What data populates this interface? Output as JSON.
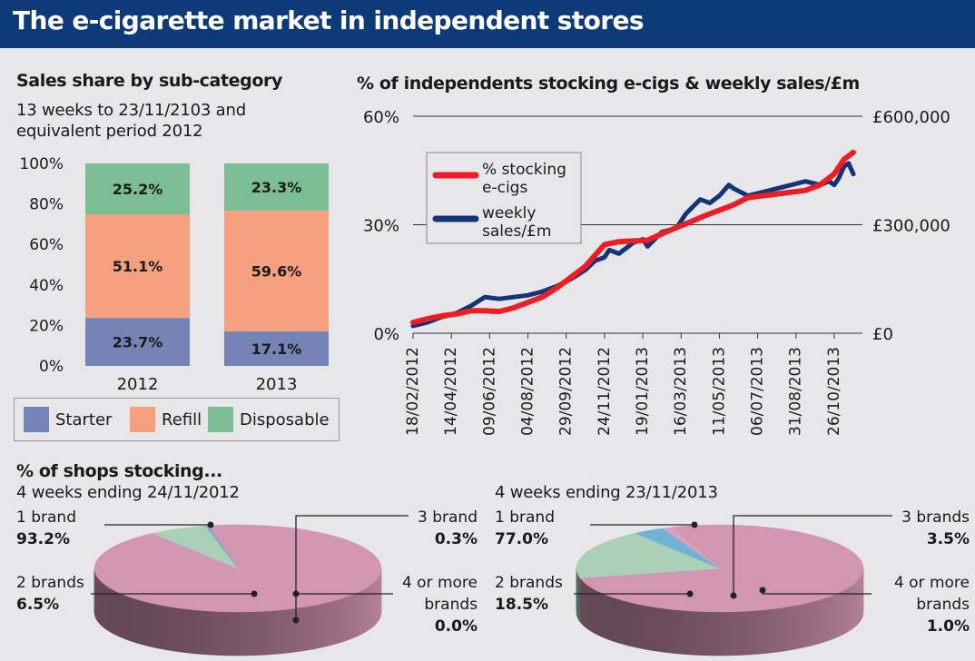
{
  "title": "The e-cigarette market in independent stores",
  "bar_section": {
    "heading": "Sales share by sub-category",
    "subtitle_1": "13 weeks to 23/11/2103 and",
    "subtitle_2": "equivalent period 2012",
    "legend": [
      "Starter",
      "Refill",
      "Disposable"
    ]
  },
  "line_section": {
    "heading": "% of independents stocking e-cigs & weekly sales/£m",
    "legend_1a": "% stocking",
    "legend_1b": "e-cigs",
    "legend_2a": "weekly",
    "legend_2b": "sales/£m"
  },
  "pie_section": {
    "heading": "% of shops stocking...",
    "left_period": "4 weeks ending 24/11/2012",
    "right_period": "4 weeks ending 23/11/2013",
    "labels": {
      "one": "1 brand",
      "two": "2 brands",
      "three_left": "3 brand",
      "three_right": "3 brands",
      "four_a": "4 or more",
      "four_b": "brands"
    }
  },
  "colors": {
    "banner": "#0f3a7a",
    "starter": "#7484b5",
    "refill": "#f5a07e",
    "disposable": "#7dbd95",
    "stocking_line": "#ee1c25",
    "sales_line": "#12357a",
    "pie_1": "#d296b2",
    "pie_2": "#aad0b8",
    "pie_3": "#6fb2d6",
    "pie_4": "#d5a3c0"
  },
  "chart_data": [
    {
      "type": "bar",
      "stacked": true,
      "categories": [
        "2012",
        "2013"
      ],
      "series": [
        {
          "name": "Starter",
          "values": [
            23.7,
            17.1
          ]
        },
        {
          "name": "Refill",
          "values": [
            51.1,
            59.6
          ]
        },
        {
          "name": "Disposable",
          "values": [
            25.2,
            23.3
          ]
        }
      ],
      "data_labels": [
        [
          "23.7%",
          "51.1%",
          "25.2%"
        ],
        [
          "17.1%",
          "59.6%",
          "23.3%"
        ]
      ],
      "ylim": [
        0,
        100
      ],
      "y_ticks": [
        "0%",
        "20%",
        "40%",
        "60%",
        "80%",
        "100%"
      ],
      "legend": "bottom"
    },
    {
      "type": "line",
      "x_ticks": [
        "18/02/2012",
        "14/04/2012",
        "09/06/2012",
        "04/08/2012",
        "29/09/2012",
        "24/11/2012",
        "19/01/2013",
        "16/03/2013",
        "11/05/2013",
        "06/07/2013",
        "31/08/2013",
        "26/10/2013"
      ],
      "x_start": "18/02/2012",
      "x_end": "23/11/2013",
      "y_left_ticks": [
        "0%",
        "30%",
        "60%"
      ],
      "y_left_range": [
        0,
        60
      ],
      "y_right_ticks": [
        "£0",
        "£300,000",
        "£600,000"
      ],
      "y_right_range": [
        0,
        600000
      ],
      "series": [
        {
          "name": "% stocking e-cigs",
          "axis": "left",
          "dates": [
            "18/02/2012",
            "10/03/2012",
            "31/03/2012",
            "21/04/2012",
            "12/05/2012",
            "02/06/2012",
            "23/06/2012",
            "14/07/2012",
            "04/08/2012",
            "25/08/2012",
            "15/09/2012",
            "06/10/2012",
            "27/10/2012",
            "10/11/2012",
            "24/11/2012",
            "15/12/2012",
            "05/01/2013",
            "26/01/2013",
            "16/02/2013",
            "09/03/2013",
            "30/03/2013",
            "20/04/2013",
            "11/05/2013",
            "01/06/2013",
            "22/06/2013",
            "13/07/2013",
            "03/08/2013",
            "24/08/2013",
            "14/09/2013",
            "05/10/2013",
            "26/10/2013",
            "09/11/2013",
            "23/11/2013"
          ],
          "values": [
            3.0,
            4.0,
            4.8,
            5.3,
            6.2,
            6.2,
            6.0,
            7.0,
            8.5,
            10.0,
            12.5,
            15.5,
            18.5,
            21.5,
            24.5,
            25.3,
            25.5,
            25.7,
            27.5,
            29.2,
            30.8,
            32.5,
            34.0,
            35.5,
            37.5,
            38.0,
            38.5,
            39.0,
            39.5,
            41.0,
            44.0,
            48.0,
            50.0
          ]
        },
        {
          "name": "weekly sales/£m",
          "axis": "right",
          "dates": [
            "18/02/2012",
            "10/03/2012",
            "31/03/2012",
            "21/04/2012",
            "12/05/2012",
            "02/06/2012",
            "23/06/2012",
            "14/07/2012",
            "04/08/2012",
            "25/08/2012",
            "15/09/2012",
            "06/10/2012",
            "27/10/2012",
            "10/11/2012",
            "24/11/2012",
            "01/12/2012",
            "15/12/2012",
            "05/01/2013",
            "19/01/2013",
            "26/01/2013",
            "16/02/2013",
            "09/03/2013",
            "23/03/2013",
            "13/04/2013",
            "27/04/2013",
            "11/05/2013",
            "25/05/2013",
            "01/06/2013",
            "22/06/2013",
            "13/07/2013",
            "03/08/2013",
            "24/08/2013",
            "14/09/2013",
            "05/10/2013",
            "19/10/2013",
            "26/10/2013",
            "02/11/2013",
            "09/11/2013",
            "16/11/2013",
            "23/11/2013"
          ],
          "values": [
            20000,
            30000,
            45000,
            55000,
            75000,
            100000,
            95000,
            100000,
            105000,
            115000,
            130000,
            150000,
            175000,
            200000,
            210000,
            230000,
            220000,
            250000,
            260000,
            240000,
            280000,
            290000,
            330000,
            370000,
            360000,
            380000,
            410000,
            400000,
            380000,
            390000,
            400000,
            410000,
            420000,
            410000,
            420000,
            410000,
            430000,
            460000,
            470000,
            440000
          ]
        }
      ],
      "legend": "top-left"
    },
    {
      "type": "pie",
      "title": "4 weeks ending 24/11/2012",
      "labels": [
        "1 brand",
        "2 brands",
        "3 brand",
        "4 or more brands"
      ],
      "values": [
        93.2,
        6.5,
        0.3,
        0.0
      ]
    },
    {
      "type": "pie",
      "title": "4 weeks ending 23/11/2013",
      "labels": [
        "1 brand",
        "2 brands",
        "3 brands",
        "4 or more brands"
      ],
      "values": [
        77.0,
        18.5,
        3.5,
        1.0
      ]
    }
  ]
}
